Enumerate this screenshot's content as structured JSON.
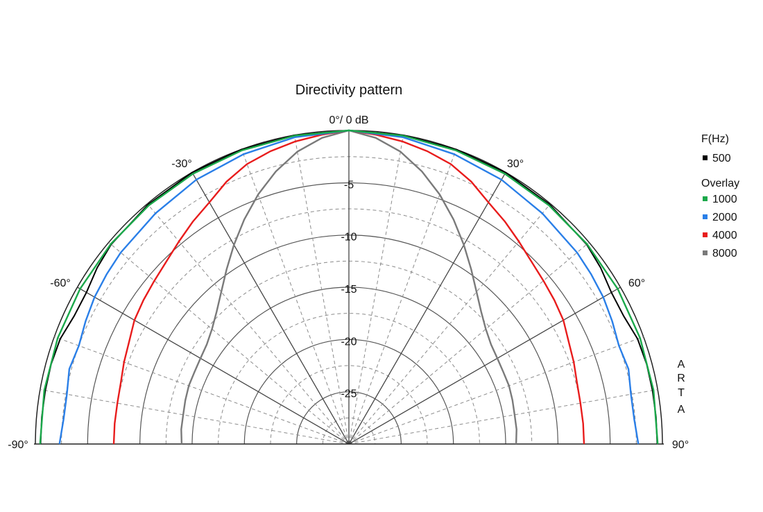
{
  "chart_data": {
    "type": "polar",
    "title": "Directivity pattern",
    "zero_label": "0°/ 0 dB",
    "watermark": "ARTA",
    "angle_range_deg": [
      -90,
      90
    ],
    "angle_ticks": [
      {
        "angle": -90,
        "label": "-90°"
      },
      {
        "angle": -60,
        "label": "-60°"
      },
      {
        "angle": -30,
        "label": "-30°"
      },
      {
        "angle": 30,
        "label": "30°"
      },
      {
        "angle": 60,
        "label": "60°"
      },
      {
        "angle": 90,
        "label": "90°"
      }
    ],
    "radial_range_db": [
      -30,
      0
    ],
    "radial_ticks": [
      {
        "db": -5,
        "label": "-5"
      },
      {
        "db": -10,
        "label": "-10"
      },
      {
        "db": -15,
        "label": "-15"
      },
      {
        "db": -20,
        "label": "-20"
      },
      {
        "db": -25,
        "label": "-25"
      }
    ],
    "legend": {
      "heading": "F(Hz)",
      "primary": {
        "name": "500",
        "color": "#000000"
      },
      "overlay_heading": "Overlay"
    },
    "series": [
      {
        "name": "500",
        "color": "#000000",
        "angles": [
          0,
          10,
          20,
          30,
          40,
          50,
          55,
          60,
          65,
          70,
          75,
          80,
          85,
          90
        ],
        "db": [
          0,
          0,
          0,
          0,
          -0.1,
          -0.3,
          -0.6,
          -1.0,
          -1.0,
          -0.6,
          -0.5,
          -0.5,
          -0.5,
          -0.5
        ]
      },
      {
        "name": "1000",
        "color": "#1aa84a",
        "angles": [
          0,
          10,
          20,
          30,
          40,
          50,
          60,
          70,
          80,
          90
        ],
        "db": [
          0,
          -0.05,
          -0.1,
          -0.15,
          -0.2,
          -0.25,
          -0.3,
          -0.35,
          -0.4,
          -0.45
        ]
      },
      {
        "name": "2000",
        "color": "#2a7fe8",
        "angles": [
          0,
          10,
          20,
          30,
          40,
          50,
          55,
          60,
          65,
          70,
          75,
          80,
          85,
          90
        ],
        "db": [
          0,
          -0.2,
          -0.5,
          -0.8,
          -1.2,
          -1.5,
          -1.7,
          -1.9,
          -2.2,
          -2.5,
          -2.3,
          -2.6,
          -2.6,
          -2.3
        ]
      },
      {
        "name": "4000",
        "color": "#e81c1c",
        "angles": [
          0,
          5,
          10,
          15,
          20,
          25,
          30,
          35,
          40,
          45,
          50,
          55,
          60,
          65,
          70,
          75,
          80,
          85,
          90
        ],
        "db": [
          0,
          -0.3,
          -0.6,
          -1.0,
          -1.5,
          -2.3,
          -3.3,
          -4.0,
          -4.7,
          -5.3,
          -5.7,
          -6.0,
          -6.3,
          -6.8,
          -7.1,
          -7.4,
          -7.5,
          -7.5,
          -7.5
        ]
      },
      {
        "name": "8000",
        "color": "#7a7a7a",
        "angles": [
          0,
          5,
          10,
          15,
          20,
          25,
          30,
          35,
          40,
          45,
          50,
          55,
          60,
          65,
          70,
          75,
          80,
          85,
          90
        ],
        "db": [
          0,
          -0.6,
          -1.6,
          -3.0,
          -4.6,
          -6.3,
          -8.0,
          -9.6,
          -11.0,
          -12.1,
          -12.9,
          -13.4,
          -13.6,
          -13.7,
          -13.7,
          -13.8,
          -13.9,
          -13.9,
          -14.0
        ]
      }
    ]
  }
}
